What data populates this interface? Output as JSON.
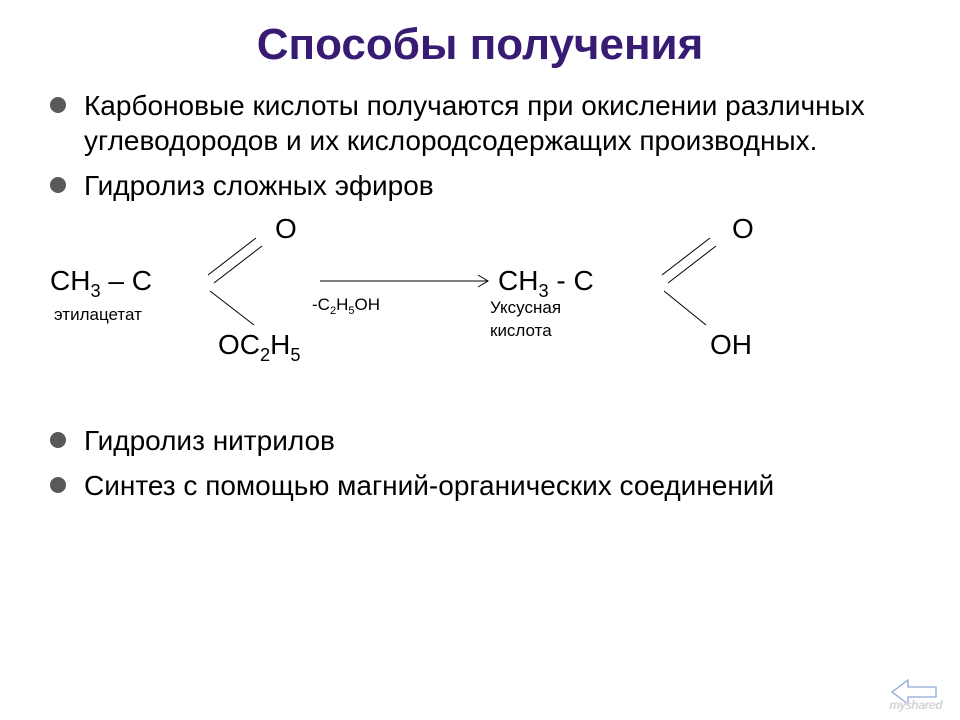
{
  "colors": {
    "title": "#381b73",
    "bullet": "#595959",
    "back_arrow": "#8fa8d6"
  },
  "title": "Способы получения",
  "bullets": {
    "b1": "Карбоновые кислоты получаются при окислении различных углеводородов и их кислородсодержащих производных.",
    "b2": "Гидролиз сложных эфиров",
    "b3": "Гидролиз нитрилов",
    "b4": "Синтез с помощью магний-органических соединений"
  },
  "reaction": {
    "left_O": "O",
    "right_O": "O",
    "left_CH3": "CH",
    "left_CH3_sub": "3",
    "left_dash": " – С",
    "right_CH3": "CH",
    "right_CH3_sub": "3",
    "right_dash": "  - С",
    "left_OC2H5_O": "ОС",
    "left_OC2H5_2": "2",
    "left_OC2H5_H": "Н",
    "left_OC2H5_5": "5",
    "right_OH": "ОН",
    "over_arrow_pre": "-С",
    "over_arrow_2": "2",
    "over_arrow_H": "Н",
    "over_arrow_5": "5",
    "over_arrow_OH": "ОН",
    "label_left": "этилацетат",
    "label_right1": "Уксусная",
    "label_right2": "кислота"
  },
  "watermark": "myshared"
}
